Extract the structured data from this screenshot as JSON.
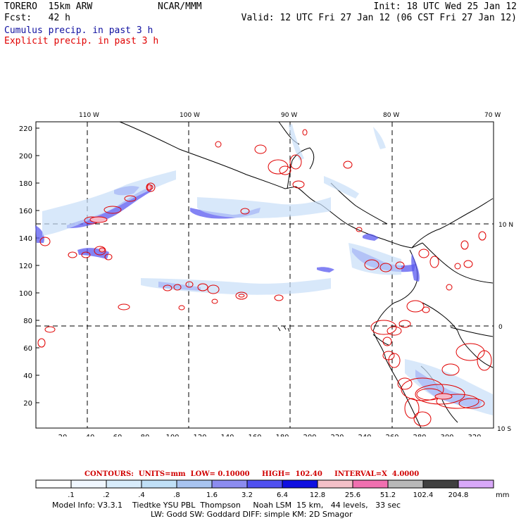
{
  "header": {
    "model_name": "TORERO  15km ARW",
    "org": "NCAR/MMM",
    "init": "Init: 18 UTC Wed 25 Jan 12",
    "fcst": "Fcst:   42 h",
    "valid": "Valid: 12 UTC Fri 27 Jan 12 (06 CST Fri 27 Jan 12)",
    "cumulus_label": "Cumulus precip. in past 3 h",
    "explicit_label": "Explicit precip. in past 3 h"
  },
  "map": {
    "lon_labels": [
      "110 W",
      "100 W",
      "90 W",
      "80 W",
      "70 W"
    ],
    "lat_labels": [
      "10 N",
      "0",
      "10 S"
    ],
    "y_ticks": [
      "220",
      "200",
      "180",
      "160",
      "140",
      "120",
      "100",
      "80",
      "60",
      "40",
      "20"
    ],
    "x_ticks": [
      "20",
      "40",
      "60",
      "80",
      "100",
      "120",
      "140",
      "160",
      "180",
      "200",
      "220",
      "240",
      "260",
      "280",
      "300",
      "320"
    ]
  },
  "contours": {
    "label": "CONTOURS:  UNITS=mm  LOW= 0.10000     HIGH=  102.40     INTERVAL=X  4.0000"
  },
  "colorbar": {
    "labels": [
      ".1",
      ".2",
      ".4",
      ".8",
      "1.6",
      "3.2",
      "6.4",
      "12.8",
      "25.6",
      "51.2",
      "102.4",
      "204.8"
    ],
    "units": "mm",
    "colors": [
      "#ffffff",
      "#f0f7ff",
      "#d8ecfb",
      "#c0e0f7",
      "#a8c4f0",
      "#8c8cf0",
      "#5050f0",
      "#1010e0",
      "#f4c0c8",
      "#f070b0",
      "#b8b8b8",
      "#404040",
      "#d8a8f8"
    ]
  },
  "footer": {
    "line1": "Model Info: V3.3.1    Tiedtke YSU PBL  Thompson     Noah LSM  15 km,   44 levels,   33 sec",
    "line2": "LW: Godd SW: Goddard DIFF: simple KM: 2D Smagor"
  }
}
